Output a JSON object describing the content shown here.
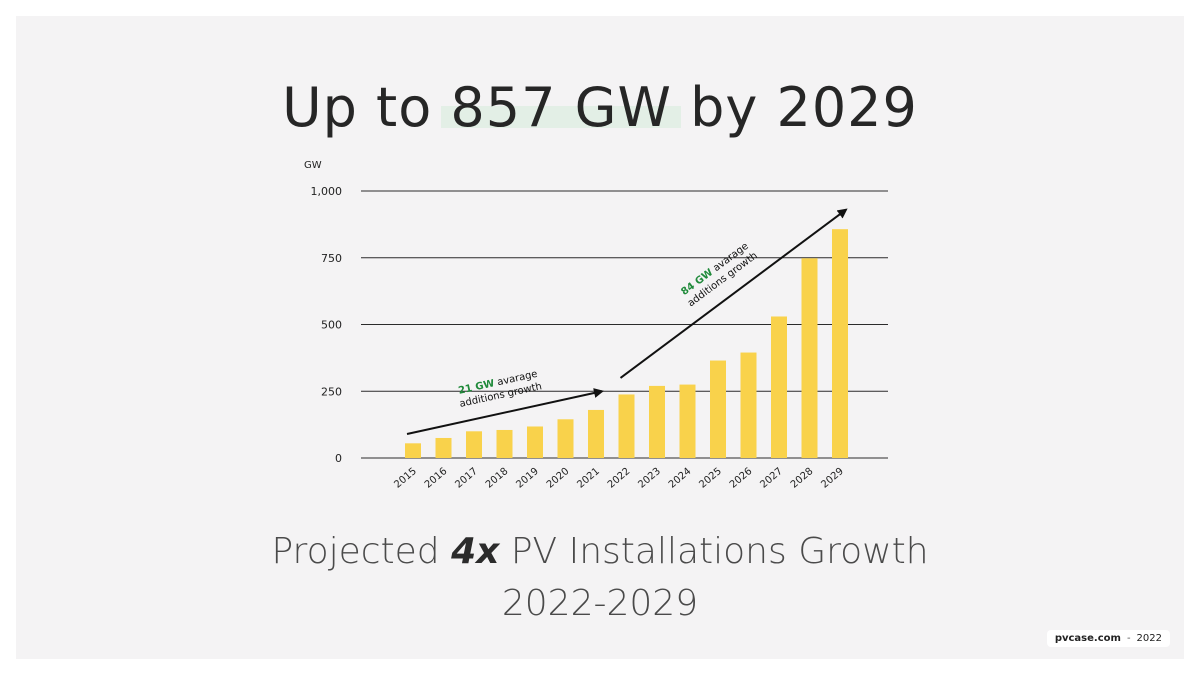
{
  "slide": {
    "title": "Up to 857 GW by 2029",
    "subtitle_pre": "Projected ",
    "subtitle_em": "4x",
    "subtitle_post": " PV Installations Growth",
    "subtitle_line2": "2022-2029",
    "footer_brand": "pvcase.com",
    "footer_sep": "-",
    "footer_year": "2022"
  },
  "colors": {
    "bar": "#f9d24b",
    "green": "#1f8a3a",
    "grid": "#2b2b2b",
    "highlight": "#e3efe6"
  },
  "chart_data": {
    "type": "bar",
    "ylabel": "GW",
    "ylim": [
      0,
      1000
    ],
    "yticks": [
      0,
      250,
      500,
      750,
      1000
    ],
    "ytick_labels": [
      "0",
      "250",
      "500",
      "750",
      "1,000"
    ],
    "grid": true,
    "categories": [
      "2015",
      "2016",
      "2017",
      "2018",
      "2019",
      "2020",
      "2021",
      "2022",
      "2023",
      "2024",
      "2025",
      "2026",
      "2027",
      "2028",
      "2029"
    ],
    "values": [
      55,
      75,
      100,
      105,
      118,
      145,
      180,
      238,
      270,
      275,
      365,
      395,
      530,
      748,
      857
    ],
    "annotations": [
      {
        "highlight": "21 GW",
        "text1": " avarage",
        "text2": "additions growth",
        "from_x": "2015",
        "from_y": 90,
        "to_x": "2021",
        "to_y": 250
      },
      {
        "highlight": "84 GW",
        "text1": " avarage",
        "text2": "additions growth",
        "from_x": "2022",
        "from_y": 300,
        "to_x": "2029",
        "to_y": 930
      }
    ]
  }
}
